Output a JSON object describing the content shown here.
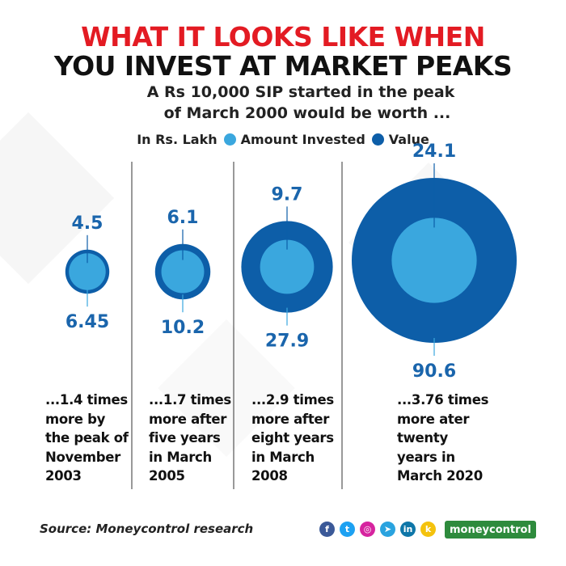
{
  "title_line1": "WHAT IT LOOKS LIKE WHEN",
  "title_line2": "YOU INVEST AT MARKET PEAKS",
  "subtitle_line1": "A Rs 10,000 SIP started in the peak",
  "subtitle_line2": "of March 2000 would be worth ...",
  "legend": {
    "unit": "In Rs. Lakh",
    "invested_label": "Amount Invested",
    "value_label": "Value"
  },
  "colors": {
    "amount_invested": "#3aa7de",
    "value": "#0d5ea8",
    "label_text": "#1a65ac",
    "divider": "#333333",
    "title_red": "#e31b23"
  },
  "chart_data": {
    "type": "bubble",
    "series": [
      {
        "name": "Amount Invested",
        "values": [
          4.5,
          6.1,
          9.7,
          24.1
        ]
      },
      {
        "name": "Value",
        "values": [
          6.45,
          10.2,
          27.9,
          90.6
        ]
      }
    ],
    "panels": [
      {
        "invested": "4.5",
        "value": "6.45"
      },
      {
        "invested": "6.1",
        "value": "10.2"
      },
      {
        "invested": "9.7",
        "value": "27.9"
      },
      {
        "invested": "24.1",
        "value": "90.6"
      }
    ]
  },
  "descriptions": [
    [
      "...1.4 times",
      "more by",
      "the peak of",
      "November",
      "2003"
    ],
    [
      "...1.7 times",
      "more after",
      "five years",
      "in March",
      "2005"
    ],
    [
      "...2.9 times",
      "more after",
      "eight years",
      "in March",
      "2008"
    ],
    [
      "...3.76 times",
      "more ater",
      "twenty",
      "years in",
      "March 2020"
    ]
  ],
  "source": "Source: Moneycontrol research",
  "social_icons": [
    {
      "name": "facebook-icon",
      "glyph": "f",
      "color": "#3b5998"
    },
    {
      "name": "twitter-icon",
      "glyph": "t",
      "color": "#1da1f2"
    },
    {
      "name": "instagram-icon",
      "glyph": "◎",
      "color": "#d6249f"
    },
    {
      "name": "telegram-icon",
      "glyph": "➤",
      "color": "#2aa3df"
    },
    {
      "name": "linkedin-icon",
      "glyph": "in",
      "color": "#0e76a8"
    },
    {
      "name": "koo-icon",
      "glyph": "k",
      "color": "#f4c20d"
    }
  ],
  "brand": "moneycontrol"
}
